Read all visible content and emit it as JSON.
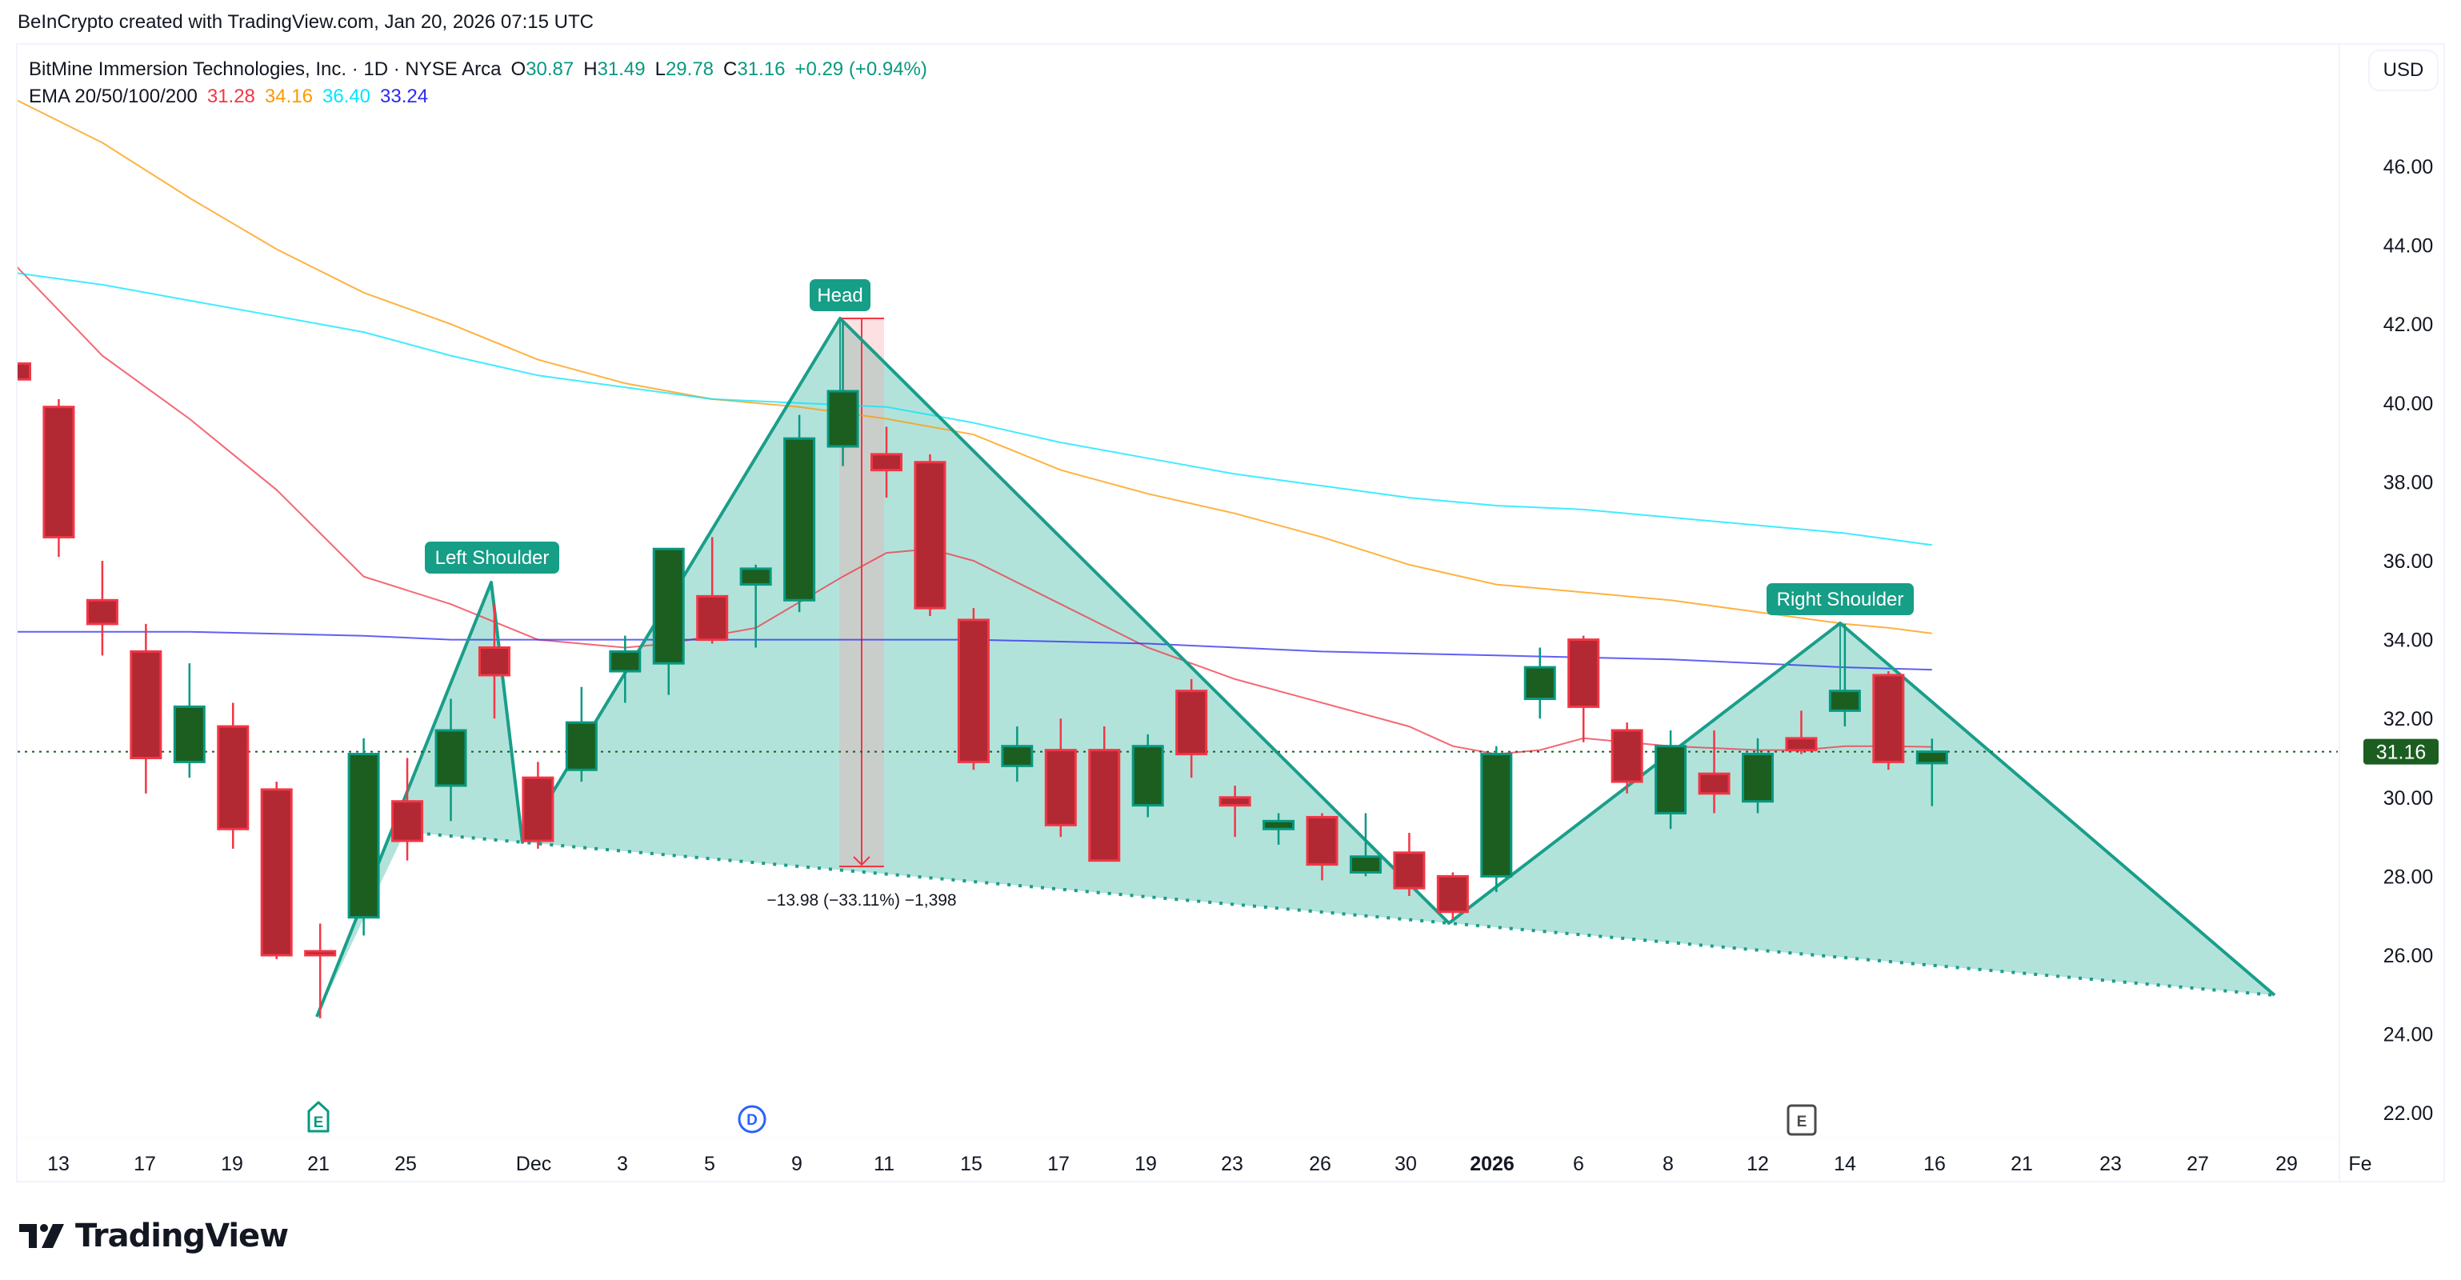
{
  "credit": "BeInCrypto created with TradingView.com, Jan 20, 2026 07:15 UTC",
  "legend": {
    "symbol_line": "BitMine Immersion Technologies, Inc. · 1D · NYSE Arca",
    "ohlc": [
      {
        "key": "O",
        "value": "30.87"
      },
      {
        "key": "H",
        "value": "31.49"
      },
      {
        "key": "L",
        "value": "29.78"
      },
      {
        "key": "C",
        "value": "31.16"
      }
    ],
    "change": "+0.29 (+0.94%)",
    "ema_label": "EMA 20/50/100/200",
    "ema_values": [
      {
        "period": "20",
        "value": "31.28",
        "color": "#f23645"
      },
      {
        "period": "50",
        "value": "34.16",
        "color": "#ff9800"
      },
      {
        "period": "100",
        "value": "36.40",
        "color": "#00e5ff"
      },
      {
        "period": "200",
        "value": "33.24",
        "color": "#2b2bf0"
      }
    ]
  },
  "currency_button": "USD",
  "last_price": {
    "value": "31.16",
    "color": "#1b5e20"
  },
  "pattern_labels": {
    "left_shoulder": "Left Shoulder",
    "head": "Head",
    "right_shoulder": "Right Shoulder"
  },
  "measurement": {
    "text": "−13.98 (−33.11%) −1,398"
  },
  "event_markers": [
    {
      "type": "earnings",
      "glyph": "E",
      "date_label": "21",
      "color": "#089981"
    },
    {
      "type": "dividend",
      "glyph": "D",
      "date_label": "Dec 8",
      "color": "#2962ff"
    },
    {
      "type": "earnings-upcoming",
      "glyph": "E",
      "date_label": "Jan 13",
      "color": "#4a4a4a"
    }
  ],
  "footer": {
    "logo_text": "TradingView"
  },
  "colors": {
    "up_fill": "#1b5e20",
    "up_border": "#089981",
    "down_fill": "#b22833",
    "down_border": "#f23645",
    "pattern_fill": "#b2e3db",
    "pattern_line": "#1a9e8a",
    "label_bg": "#169e87"
  },
  "chart_data": {
    "type": "candlestick",
    "title": "BitMine Immersion Technologies, Inc. · 1D · NYSE Arca",
    "ylabel": "USD",
    "ylim": [
      21.5,
      48.2
    ],
    "y_ticks": [
      "46.00",
      "44.00",
      "42.00",
      "40.00",
      "38.00",
      "36.00",
      "34.00",
      "32.00",
      "30.00",
      "28.00",
      "26.00",
      "24.00",
      "22.00"
    ],
    "x_ticks": [
      "13",
      "17",
      "19",
      "21",
      "25",
      "Dec",
      "3",
      "5",
      "9",
      "11",
      "15",
      "17",
      "19",
      "23",
      "26",
      "30",
      "2026",
      "6",
      "8",
      "12",
      "14",
      "16",
      "21",
      "23",
      "27",
      "29",
      "Fe"
    ],
    "grid": false,
    "candles": [
      {
        "date": "Nov 12",
        "o": 41.0,
        "h": 41.1,
        "l": 40.6,
        "c": 40.6
      },
      {
        "date": "Nov 13",
        "o": 39.9,
        "h": 40.1,
        "l": 36.1,
        "c": 36.6
      },
      {
        "date": "Nov 14",
        "o": 35.0,
        "h": 36.0,
        "l": 33.6,
        "c": 34.4
      },
      {
        "date": "Nov 17",
        "o": 33.7,
        "h": 34.4,
        "l": 30.1,
        "c": 31.0
      },
      {
        "date": "Nov 18",
        "o": 30.9,
        "h": 33.4,
        "l": 30.5,
        "c": 32.3
      },
      {
        "date": "Nov 19",
        "o": 31.8,
        "h": 32.4,
        "l": 28.7,
        "c": 29.2
      },
      {
        "date": "Nov 20",
        "o": 30.2,
        "h": 30.4,
        "l": 25.9,
        "c": 26.0
      },
      {
        "date": "Nov 21",
        "o": 26.1,
        "h": 26.8,
        "l": 24.4,
        "c": 26.0
      },
      {
        "date": "Nov 24",
        "o": 26.96,
        "h": 31.5,
        "l": 26.5,
        "c": 31.1
      },
      {
        "date": "Nov 25",
        "o": 29.9,
        "h": 31.0,
        "l": 28.4,
        "c": 28.9
      },
      {
        "date": "Nov 26",
        "o": 30.3,
        "h": 32.5,
        "l": 29.4,
        "c": 31.7
      },
      {
        "date": "Nov 28",
        "o": 33.8,
        "h": 34.9,
        "l": 32.0,
        "c": 33.1
      },
      {
        "date": "Dec 1",
        "o": 30.5,
        "h": 30.9,
        "l": 28.7,
        "c": 28.9
      },
      {
        "date": "Dec 2",
        "o": 30.7,
        "h": 32.8,
        "l": 30.4,
        "c": 31.9
      },
      {
        "date": "Dec 3",
        "o": 33.2,
        "h": 34.1,
        "l": 32.4,
        "c": 33.7
      },
      {
        "date": "Dec 4",
        "o": 33.4,
        "h": 36.3,
        "l": 32.6,
        "c": 36.3
      },
      {
        "date": "Dec 5",
        "o": 35.1,
        "h": 36.6,
        "l": 33.9,
        "c": 34.0
      },
      {
        "date": "Dec 8",
        "o": 35.4,
        "h": 35.9,
        "l": 33.8,
        "c": 35.8
      },
      {
        "date": "Dec 9",
        "o": 35.0,
        "h": 39.7,
        "l": 34.7,
        "c": 39.1
      },
      {
        "date": "Dec 10",
        "o": 38.9,
        "h": 42.1,
        "l": 38.4,
        "c": 40.3
      },
      {
        "date": "Dec 11",
        "o": 38.7,
        "h": 39.4,
        "l": 37.6,
        "c": 38.3
      },
      {
        "date": "Dec 12",
        "o": 38.5,
        "h": 38.7,
        "l": 34.6,
        "c": 34.8
      },
      {
        "date": "Dec 15",
        "o": 34.5,
        "h": 34.8,
        "l": 30.7,
        "c": 30.9
      },
      {
        "date": "Dec 16",
        "o": 30.8,
        "h": 31.8,
        "l": 30.4,
        "c": 31.3
      },
      {
        "date": "Dec 17",
        "o": 31.2,
        "h": 32.0,
        "l": 29.0,
        "c": 29.3
      },
      {
        "date": "Dec 18",
        "o": 31.2,
        "h": 31.8,
        "l": 28.4,
        "c": 28.4
      },
      {
        "date": "Dec 19",
        "o": 29.8,
        "h": 31.6,
        "l": 29.5,
        "c": 31.3
      },
      {
        "date": "Dec 22",
        "o": 32.7,
        "h": 33.0,
        "l": 30.5,
        "c": 31.1
      },
      {
        "date": "Dec 23",
        "o": 30.0,
        "h": 30.3,
        "l": 29.0,
        "c": 29.8
      },
      {
        "date": "Dec 24",
        "o": 29.2,
        "h": 29.6,
        "l": 28.8,
        "c": 29.4
      },
      {
        "date": "Dec 26",
        "o": 29.5,
        "h": 29.6,
        "l": 27.9,
        "c": 28.3
      },
      {
        "date": "Dec 29",
        "o": 28.1,
        "h": 29.6,
        "l": 28.0,
        "c": 28.5
      },
      {
        "date": "Dec 30",
        "o": 28.6,
        "h": 29.1,
        "l": 27.5,
        "c": 27.7
      },
      {
        "date": "Dec 31",
        "o": 28.0,
        "h": 28.1,
        "l": 26.9,
        "c": 27.1
      },
      {
        "date": "Jan 2",
        "o": 28.0,
        "h": 31.3,
        "l": 27.6,
        "c": 31.1
      },
      {
        "date": "Jan 5",
        "o": 32.5,
        "h": 33.8,
        "l": 32.0,
        "c": 33.3
      },
      {
        "date": "Jan 6",
        "o": 34.0,
        "h": 34.1,
        "l": 31.4,
        "c": 32.3
      },
      {
        "date": "Jan 7",
        "o": 31.7,
        "h": 31.9,
        "l": 30.1,
        "c": 30.4
      },
      {
        "date": "Jan 8",
        "o": 29.6,
        "h": 31.7,
        "l": 29.2,
        "c": 31.3
      },
      {
        "date": "Jan 9",
        "o": 30.6,
        "h": 31.7,
        "l": 29.6,
        "c": 30.1
      },
      {
        "date": "Jan 12",
        "o": 29.9,
        "h": 31.5,
        "l": 29.6,
        "c": 31.1
      },
      {
        "date": "Jan 13",
        "o": 31.5,
        "h": 32.2,
        "l": 31.1,
        "c": 31.2
      },
      {
        "date": "Jan 14",
        "o": 32.2,
        "h": 34.4,
        "l": 31.8,
        "c": 32.7
      },
      {
        "date": "Jan 15",
        "o": 33.1,
        "h": 33.2,
        "l": 30.7,
        "c": 30.9
      },
      {
        "date": "Jan 16",
        "o": 30.87,
        "h": 31.49,
        "l": 29.78,
        "c": 31.16
      }
    ],
    "series": [
      {
        "name": "EMA 20",
        "color": "#f23645",
        "last": 31.28,
        "points": [
          [
            0,
            43.5
          ],
          [
            2,
            41.2
          ],
          [
            4,
            39.6
          ],
          [
            6,
            37.8
          ],
          [
            8,
            35.6
          ],
          [
            10,
            34.9
          ],
          [
            12,
            34.0
          ],
          [
            14,
            33.8
          ],
          [
            15,
            33.9
          ],
          [
            17,
            34.3
          ],
          [
            19,
            35.6
          ],
          [
            20,
            36.2
          ],
          [
            21,
            36.3
          ],
          [
            22,
            36.0
          ],
          [
            24,
            34.9
          ],
          [
            26,
            33.8
          ],
          [
            28,
            33.0
          ],
          [
            30,
            32.4
          ],
          [
            32,
            31.8
          ],
          [
            33,
            31.3
          ],
          [
            34,
            31.1
          ],
          [
            35,
            31.2
          ],
          [
            36,
            31.5
          ],
          [
            37,
            31.4
          ],
          [
            38,
            31.3
          ],
          [
            40,
            31.2
          ],
          [
            41,
            31.2
          ],
          [
            42,
            31.3
          ],
          [
            43,
            31.3
          ],
          [
            44,
            31.28
          ]
        ]
      },
      {
        "name": "EMA 50",
        "color": "#ff9800",
        "last": 34.16,
        "points": [
          [
            0,
            47.7
          ],
          [
            2,
            46.6
          ],
          [
            4,
            45.2
          ],
          [
            6,
            43.9
          ],
          [
            8,
            42.8
          ],
          [
            10,
            42.0
          ],
          [
            12,
            41.1
          ],
          [
            14,
            40.5
          ],
          [
            16,
            40.1
          ],
          [
            18,
            39.9
          ],
          [
            20,
            39.6
          ],
          [
            22,
            39.2
          ],
          [
            24,
            38.3
          ],
          [
            26,
            37.7
          ],
          [
            28,
            37.2
          ],
          [
            30,
            36.6
          ],
          [
            32,
            35.9
          ],
          [
            34,
            35.4
          ],
          [
            36,
            35.2
          ],
          [
            38,
            35.0
          ],
          [
            40,
            34.7
          ],
          [
            42,
            34.4
          ],
          [
            43,
            34.3
          ],
          [
            44,
            34.16
          ]
        ]
      },
      {
        "name": "EMA 100",
        "color": "#00e5ff",
        "last": 36.4,
        "points": [
          [
            0,
            43.3
          ],
          [
            2,
            43.0
          ],
          [
            4,
            42.6
          ],
          [
            6,
            42.2
          ],
          [
            8,
            41.8
          ],
          [
            10,
            41.2
          ],
          [
            12,
            40.7
          ],
          [
            14,
            40.4
          ],
          [
            16,
            40.1
          ],
          [
            18,
            40.0
          ],
          [
            20,
            39.9
          ],
          [
            22,
            39.5
          ],
          [
            24,
            39.0
          ],
          [
            26,
            38.6
          ],
          [
            28,
            38.2
          ],
          [
            30,
            37.9
          ],
          [
            32,
            37.6
          ],
          [
            34,
            37.4
          ],
          [
            36,
            37.3
          ],
          [
            38,
            37.1
          ],
          [
            40,
            36.9
          ],
          [
            42,
            36.7
          ],
          [
            44,
            36.4
          ]
        ]
      },
      {
        "name": "EMA 200",
        "color": "#2b2bf0",
        "last": 33.24,
        "points": [
          [
            0,
            34.2
          ],
          [
            4,
            34.2
          ],
          [
            8,
            34.1
          ],
          [
            10,
            34.0
          ],
          [
            12,
            34.0
          ],
          [
            16,
            34.0
          ],
          [
            20,
            34.0
          ],
          [
            22,
            34.0
          ],
          [
            26,
            33.9
          ],
          [
            30,
            33.7
          ],
          [
            34,
            33.6
          ],
          [
            38,
            33.5
          ],
          [
            42,
            33.3
          ],
          [
            44,
            33.24
          ]
        ]
      }
    ],
    "annotations": [
      {
        "type": "head-and-shoulders",
        "points": {
          "start": [
            7,
            24.4
          ],
          "left_shoulder": [
            11,
            35.5
          ],
          "neck_left": [
            12,
            28.9
          ],
          "head": [
            19,
            42.2
          ],
          "neck_right": [
            33,
            26.9
          ],
          "right_shoulder": [
            42,
            34.4
          ],
          "end": [
            52,
            25.0
          ]
        }
      },
      {
        "type": "price-range",
        "from": 42.2,
        "to": 28.2,
        "label": "−13.98 (−33.11%) −1,398"
      }
    ],
    "last_price_line": 31.16
  }
}
